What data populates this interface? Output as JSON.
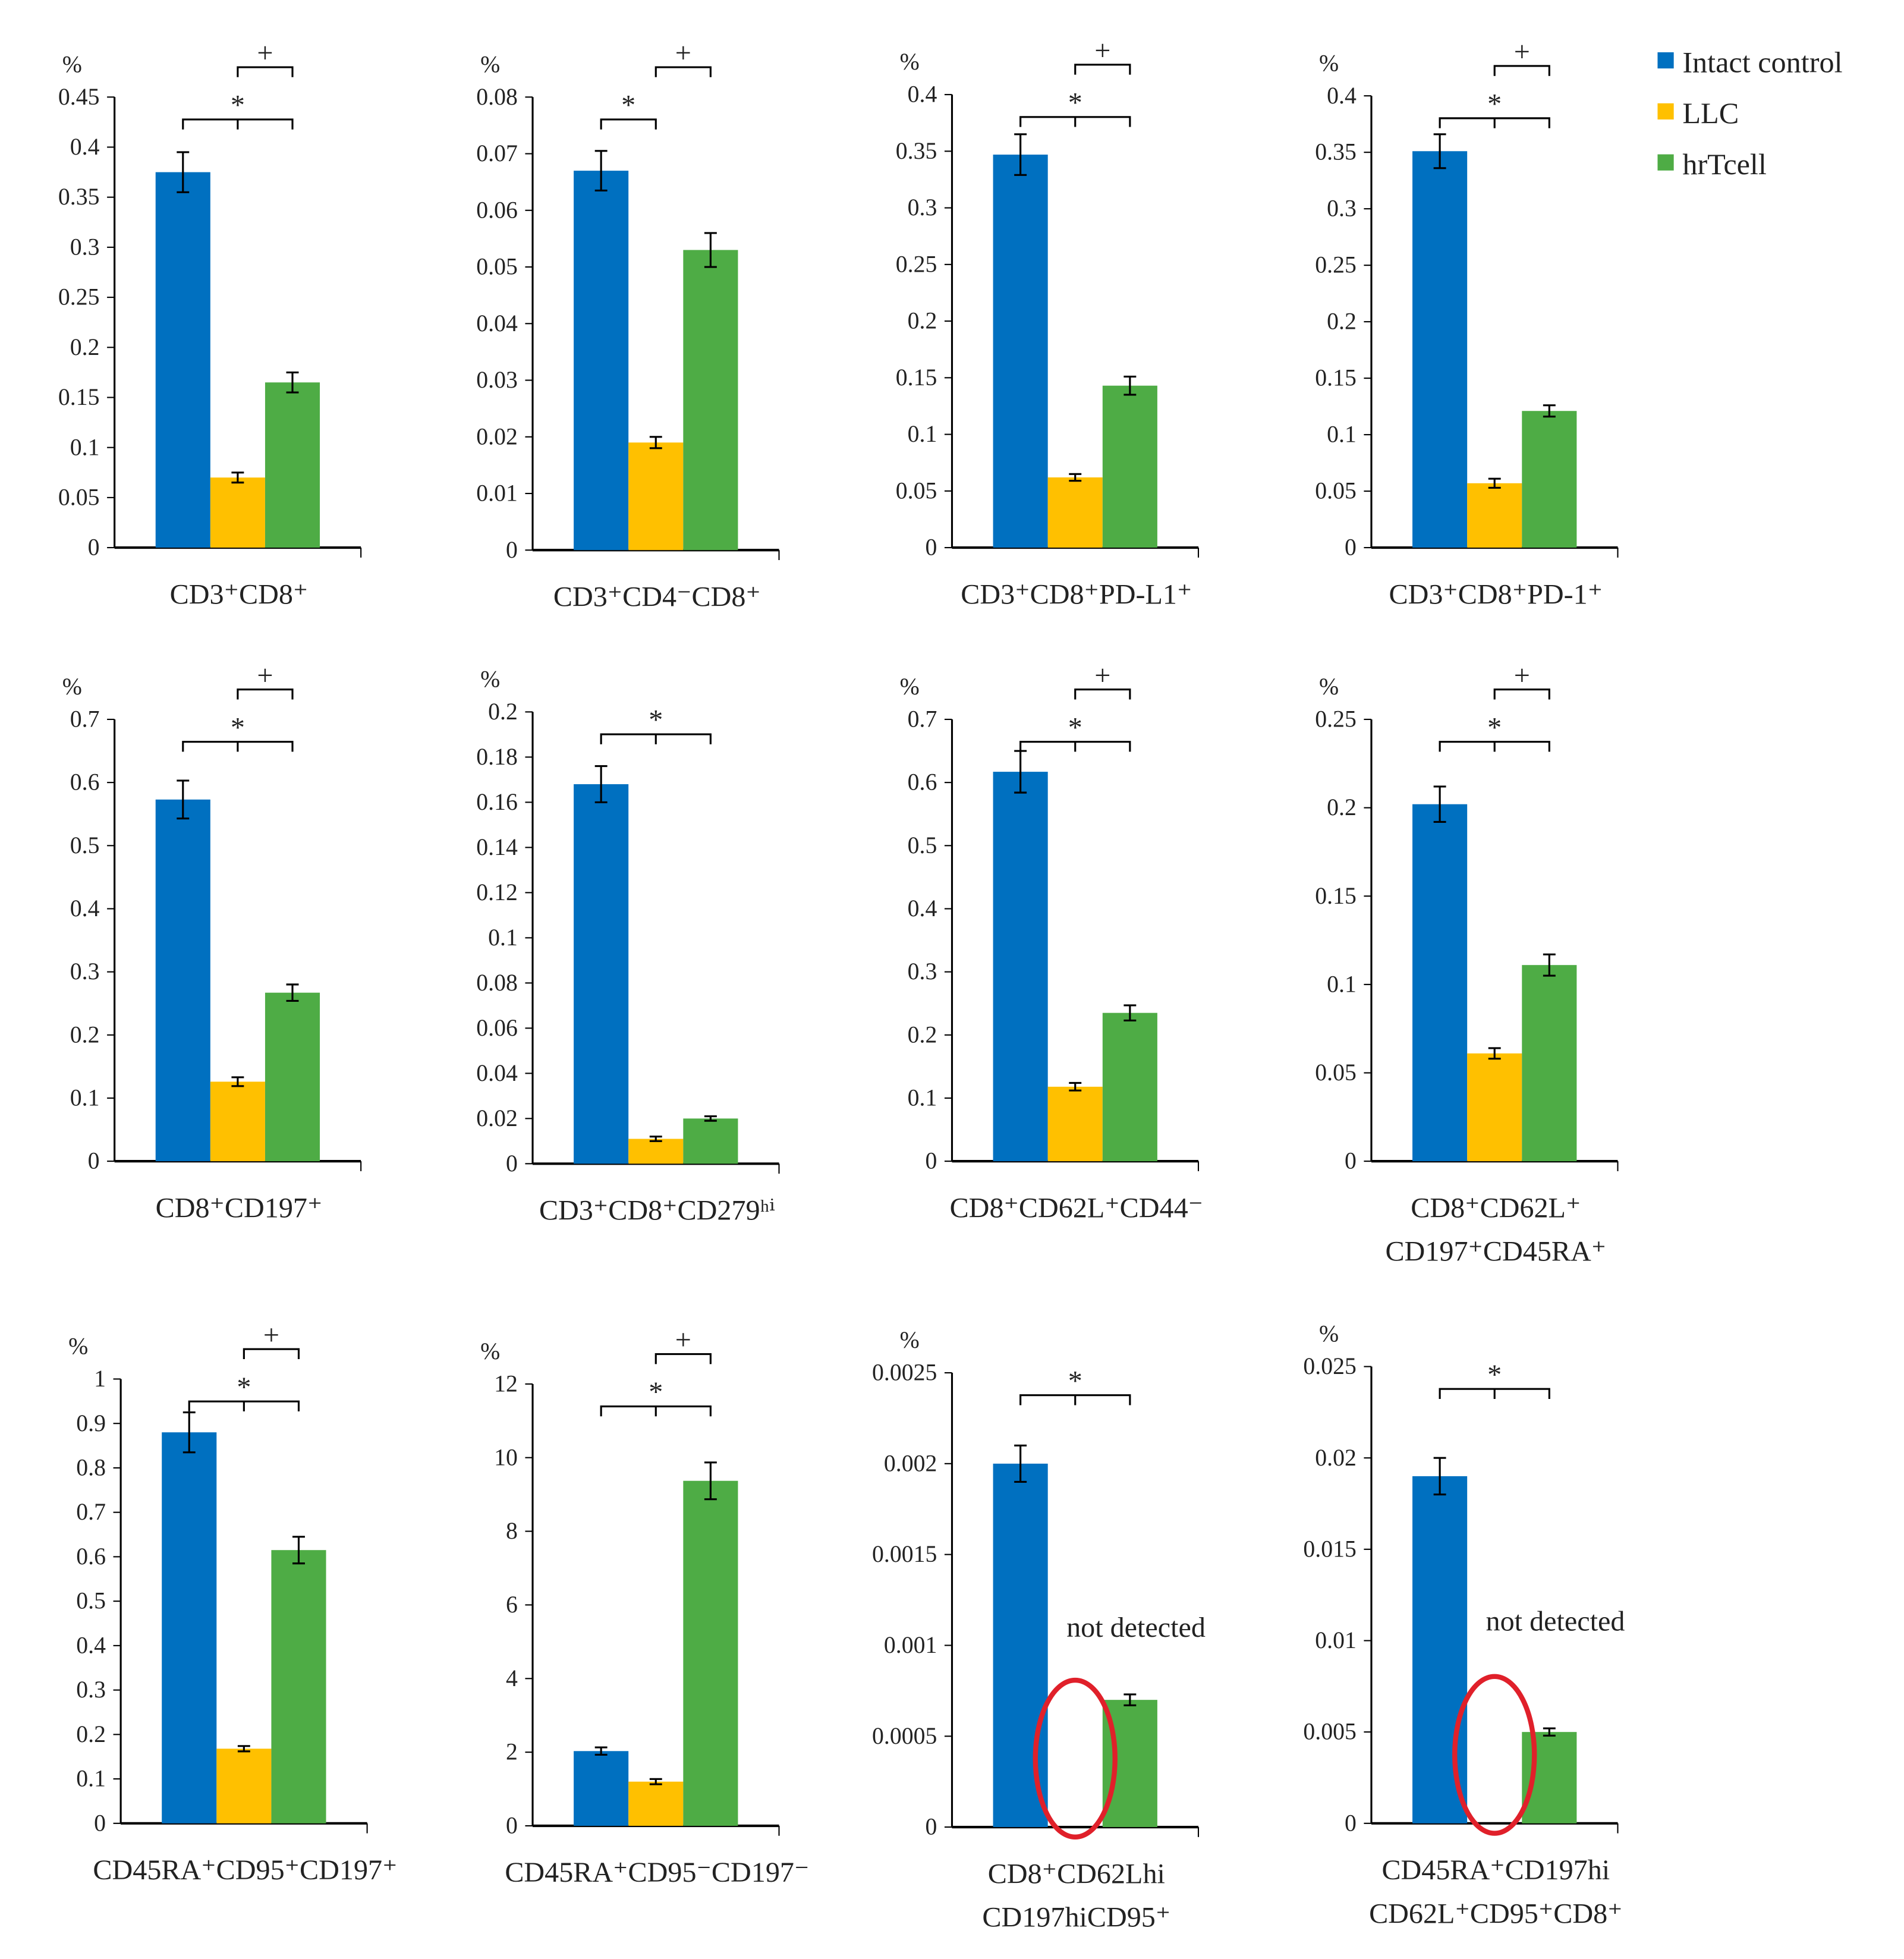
{
  "legend": [
    {
      "name": "Intact control",
      "color": "#0070c0"
    },
    {
      "name": "LLC",
      "color": "#ffc000"
    },
    {
      "name": "hrTcell",
      "color": "#4eac45"
    }
  ],
  "chart_data": [
    {
      "type": "bar",
      "title": "CD3⁺CD8⁺",
      "ylabel": "%",
      "ylim": [
        0,
        0.45
      ],
      "ticks": [
        "0",
        "0.05",
        "0.1",
        "0.15",
        "0.2",
        "0.25",
        "0.3",
        "0.35",
        "0.4",
        "0.45"
      ],
      "values": [
        0.375,
        0.07,
        0.165
      ],
      "errors": [
        0.02,
        0.005,
        0.01
      ],
      "sig": [
        {
          "mark": "*",
          "from": 0,
          "to": 2
        },
        {
          "mark": "+",
          "from": 1,
          "to": 2
        }
      ]
    },
    {
      "type": "bar",
      "title": "CD3⁺CD4⁻CD8⁺",
      "ylabel": "%",
      "ylim": [
        0,
        0.08
      ],
      "ticks": [
        "0",
        "0.01",
        "0.02",
        "0.03",
        "0.04",
        "0.05",
        "0.06",
        "0.07",
        "0.08"
      ],
      "values": [
        0.067,
        0.019,
        0.053
      ],
      "errors": [
        0.0035,
        0.001,
        0.003
      ],
      "sig": [
        {
          "mark": "*",
          "from": 0,
          "to": 1
        },
        {
          "mark": "+",
          "from": 1,
          "to": 2
        }
      ]
    },
    {
      "type": "bar",
      "title": "CD3⁺CD8⁺PD-L1⁺",
      "ylabel": "%",
      "ylim": [
        0,
        0.4
      ],
      "ticks": [
        "0",
        "0.05",
        "0.1",
        "0.15",
        "0.2",
        "0.25",
        "0.3",
        "0.35",
        "0.4"
      ],
      "values": [
        0.347,
        0.062,
        0.143
      ],
      "errors": [
        0.018,
        0.003,
        0.008
      ],
      "sig": [
        {
          "mark": "*",
          "from": 0,
          "to": 2
        },
        {
          "mark": "+",
          "from": 1,
          "to": 2
        }
      ]
    },
    {
      "type": "bar",
      "title": "CD3⁺CD8⁺PD-1⁺",
      "ylabel": "%",
      "ylim": [
        0,
        0.4
      ],
      "ticks": [
        "0",
        "0.05",
        "0.1",
        "0.15",
        "0.2",
        "0.25",
        "0.3",
        "0.35",
        "0.4"
      ],
      "values": [
        0.351,
        0.057,
        0.121
      ],
      "errors": [
        0.015,
        0.004,
        0.005
      ],
      "sig": [
        {
          "mark": "*",
          "from": 0,
          "to": 2
        },
        {
          "mark": "+",
          "from": 1,
          "to": 2
        }
      ]
    },
    {
      "type": "bar",
      "title": "CD8⁺CD197⁺",
      "ylabel": "%",
      "ylim": [
        0,
        0.7
      ],
      "ticks": [
        "0",
        "0.1",
        "0.2",
        "0.3",
        "0.4",
        "0.5",
        "0.6",
        "0.7"
      ],
      "values": [
        0.573,
        0.126,
        0.267
      ],
      "errors": [
        0.03,
        0.007,
        0.013
      ],
      "sig": [
        {
          "mark": "*",
          "from": 0,
          "to": 2
        },
        {
          "mark": "+",
          "from": 1,
          "to": 2
        }
      ]
    },
    {
      "type": "bar",
      "title": "CD3⁺CD8⁺CD279ʰⁱ",
      "ylabel": "%",
      "ylim": [
        0,
        0.2
      ],
      "ticks": [
        "0",
        "0.02",
        "0.04",
        "0.06",
        "0.08",
        "0.1",
        "0.12",
        "0.14",
        "0.16",
        "0.18",
        "0.2"
      ],
      "values": [
        0.168,
        0.011,
        0.02
      ],
      "errors": [
        0.008,
        0.001,
        0.001
      ],
      "sig": [
        {
          "mark": "*",
          "from": 0,
          "to": 2
        }
      ]
    },
    {
      "type": "bar",
      "title": "CD8⁺CD62L⁺CD44⁻",
      "ylabel": "%",
      "ylim": [
        0,
        0.7
      ],
      "ticks": [
        "0",
        "0.1",
        "0.2",
        "0.3",
        "0.4",
        "0.5",
        "0.6",
        "0.7"
      ],
      "values": [
        0.617,
        0.118,
        0.235
      ],
      "errors": [
        0.033,
        0.006,
        0.012
      ],
      "sig": [
        {
          "mark": "*",
          "from": 0,
          "to": 2
        },
        {
          "mark": "+",
          "from": 1,
          "to": 2
        }
      ]
    },
    {
      "type": "bar",
      "title": "CD8⁺CD62L⁺",
      "title2": "CD197⁺CD45RA⁺",
      "ylabel": "%",
      "ylim": [
        0,
        0.25
      ],
      "ticks": [
        "0",
        "0.05",
        "0.1",
        "0.15",
        "0.2",
        "0.25"
      ],
      "values": [
        0.202,
        0.061,
        0.111
      ],
      "errors": [
        0.01,
        0.003,
        0.006
      ],
      "sig": [
        {
          "mark": "*",
          "from": 0,
          "to": 2
        },
        {
          "mark": "+",
          "from": 1,
          "to": 2
        }
      ]
    },
    {
      "type": "bar",
      "title": "CD45RA⁺CD95⁺CD197⁺",
      "ylabel": "%",
      "ylim": [
        0,
        1
      ],
      "ticks": [
        "0",
        "0.1",
        "0.2",
        "0.3",
        "0.4",
        "0.5",
        "0.6",
        "0.7",
        "0.8",
        "0.9",
        "1"
      ],
      "values": [
        0.88,
        0.168,
        0.615
      ],
      "errors": [
        0.045,
        0.006,
        0.03
      ],
      "sig": [
        {
          "mark": "*",
          "from": 0,
          "to": 2
        },
        {
          "mark": "+",
          "from": 1,
          "to": 2
        }
      ]
    },
    {
      "type": "bar",
      "title": "CD45RA⁺CD95⁻CD197⁻",
      "ylabel": "%",
      "ylim": [
        0,
        12
      ],
      "ticks": [
        "0",
        "2",
        "4",
        "6",
        "8",
        "10",
        "12"
      ],
      "values": [
        2.03,
        1.2,
        9.37
      ],
      "errors": [
        0.1,
        0.07,
        0.5
      ],
      "sig": [
        {
          "mark": "*",
          "from": 0,
          "to": 2
        },
        {
          "mark": "+",
          "from": 1,
          "to": 2
        }
      ]
    },
    {
      "type": "bar",
      "title": "CD8⁺CD62Lhi",
      "title2": "CD197hiCD95⁺",
      "ylabel": "%",
      "ylim": [
        0,
        0.0025
      ],
      "ticks": [
        "0",
        "0.0005",
        "0.001",
        "0.0015",
        "0.002",
        "0.0025"
      ],
      "values": [
        0.002,
        null,
        0.0007
      ],
      "errors": [
        0.0001,
        null,
        3e-05
      ],
      "annotation": "not detected",
      "sig": [
        {
          "mark": "*",
          "from": 0,
          "to": 2
        }
      ]
    },
    {
      "type": "bar",
      "title": "CD45RA⁺CD197hi",
      "title2": "CD62L⁺CD95⁺CD8⁺",
      "ylabel": "%",
      "ylim": [
        0,
        0.025
      ],
      "ticks": [
        "0",
        "0.005",
        "0.01",
        "0.015",
        "0.02",
        "0.025"
      ],
      "values": [
        0.019,
        null,
        0.005
      ],
      "errors": [
        0.001,
        null,
        0.0002
      ],
      "annotation": "not detected",
      "sig": [
        {
          "mark": "*",
          "from": 0,
          "to": 2
        }
      ]
    }
  ]
}
